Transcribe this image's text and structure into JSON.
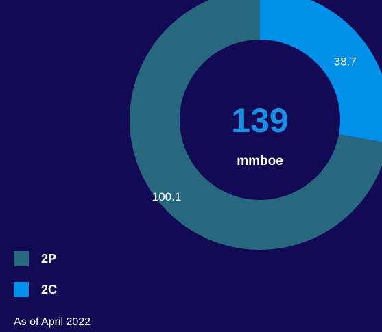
{
  "chart_data": {
    "type": "donut",
    "categories": [
      "2P",
      "2C"
    ],
    "values": [
      100.1,
      38.7
    ],
    "colors": [
      "#27677f",
      "#0090ea"
    ],
    "center_value": 139,
    "center_label": "mmboe",
    "note": "As of April 2022",
    "legend": "bottom-left"
  }
}
